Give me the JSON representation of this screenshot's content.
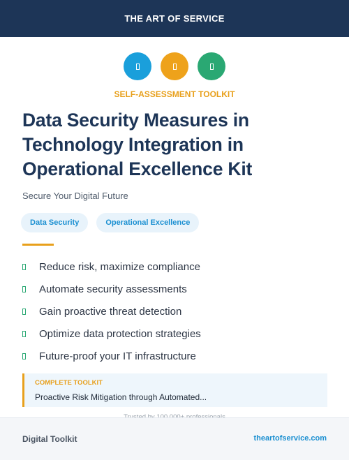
{
  "header": {
    "title": "THE ART OF SERVICE",
    "color": "#1d3557"
  },
  "icons": [
    {
      "name": "icon-blue",
      "color": "#1a9fdb"
    },
    {
      "name": "icon-orange",
      "color": "#eea21b"
    },
    {
      "name": "icon-green",
      "color": "#2aa873"
    }
  ],
  "eyebrow": "SELF-ASSESSMENT TOOLKIT",
  "title": "Data Security Measures in Technology Integration in Operational Excellence Kit",
  "subtitle": "Secure Your Digital Future",
  "tags": [
    "Data Security",
    "Operational Excellence"
  ],
  "features": [
    "Reduce risk, maximize compliance",
    "Automate security assessments",
    "Gain proactive threat detection",
    "Optimize data protection strategies",
    "Future-proof your IT infrastructure"
  ],
  "callout": {
    "label": "COMPLETE TOOLKIT",
    "text": "Proactive Risk Mitigation through Automated..."
  },
  "trusted": "Trusted by 100,000+ professionals",
  "footer": {
    "left": "Digital Toolkit",
    "right": "theartofservice.com"
  },
  "colors": {
    "accent": "#e8a01c",
    "navy": "#1d3557",
    "link": "#1a8fd1",
    "check": "#2aa873"
  }
}
